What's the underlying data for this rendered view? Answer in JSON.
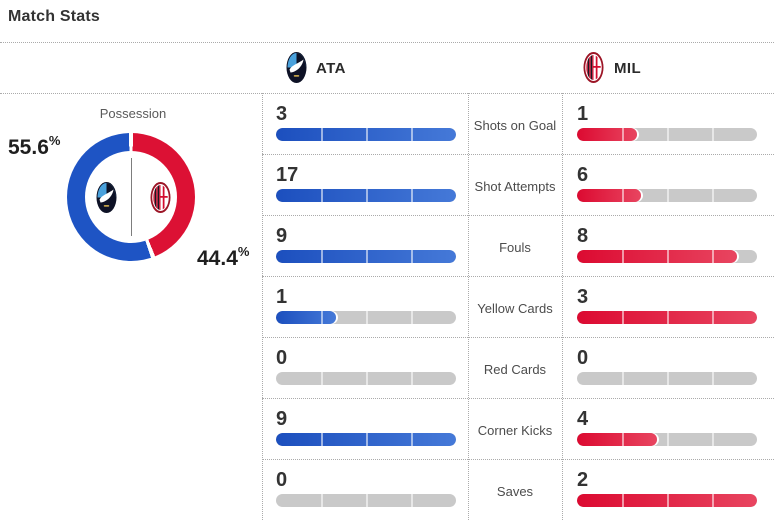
{
  "title": "Match Stats",
  "header": {
    "home": {
      "code": "ATA",
      "name": "Atalanta"
    },
    "away": {
      "code": "MIL",
      "name": "AC Milan"
    }
  },
  "possession": {
    "label": "Possession",
    "home_pct": "55.6",
    "away_pct": "44.4",
    "pct_symbol": "%"
  },
  "stats": [
    {
      "label": "Shots on Goal",
      "home": "3",
      "away": "1"
    },
    {
      "label": "Shot Attempts",
      "home": "17",
      "away": "6"
    },
    {
      "label": "Fouls",
      "home": "9",
      "away": "8"
    },
    {
      "label": "Yellow Cards",
      "home": "1",
      "away": "3"
    },
    {
      "label": "Red Cards",
      "home": "0",
      "away": "0"
    },
    {
      "label": "Corner Kicks",
      "home": "9",
      "away": "4"
    },
    {
      "label": "Saves",
      "home": "0",
      "away": "2"
    }
  ],
  "colors": {
    "home": "#1e54c4",
    "away": "#dc1134",
    "home_bar_start": "#1c4fbe",
    "home_bar_end": "#4579d8",
    "away_bar_start": "#dc0a31",
    "away_bar_end": "#e84560",
    "track": "#c9c9c9"
  },
  "chart_data": [
    {
      "type": "pie",
      "title": "Possession",
      "labels": [
        "ATA",
        "MIL"
      ],
      "values": [
        55.6,
        44.4
      ],
      "colors": [
        "#1e54c4",
        "#dc1134"
      ],
      "note": "donut with team crests inside, blue segment starts at 12 o'clock going counterclockwise"
    },
    {
      "type": "bar",
      "title": "Match Stats",
      "categories": [
        "Shots on Goal",
        "Shot Attempts",
        "Fouls",
        "Yellow Cards",
        "Red Cards",
        "Corner Kicks",
        "Saves"
      ],
      "series": [
        {
          "name": "ATA",
          "values": [
            3,
            17,
            9,
            1,
            0,
            9,
            0
          ],
          "color": "#1c4fbe"
        },
        {
          "name": "MIL",
          "values": [
            1,
            6,
            8,
            3,
            0,
            4,
            2
          ],
          "color": "#dc0a31"
        }
      ],
      "note": "each pair normalized to the pair maximum; 4-segment pill bars on gray track"
    }
  ]
}
